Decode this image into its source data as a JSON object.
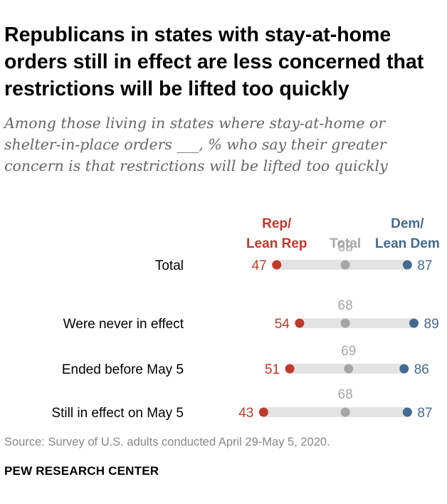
{
  "title": "Republicans in states with stay-at-home orders still in effect are less concerned that restrictions will be lifted too quickly",
  "subtitle": "Among those living in states where stay-at-home or shelter-in-place orders ___, % who say their greater concern is that restrictions will be lifted too quickly",
  "source": "Source: Survey of U.S. adults conducted April 29-May 5, 2020.",
  "org": "PEW RESEARCH CENTER",
  "colors": {
    "rep": "#c0392b",
    "total": "#a6a6a6",
    "dem": "#436a90",
    "bar": "#e3e3e3",
    "label": "#000000"
  },
  "chart_data": {
    "type": "dot",
    "legend": [
      {
        "key": "rep",
        "lines": [
          "Rep/",
          "Lean Rep"
        ]
      },
      {
        "key": "total",
        "lines": [
          "Total"
        ]
      },
      {
        "key": "dem",
        "lines": [
          "Dem/",
          "Lean Dem"
        ]
      }
    ],
    "categories": [
      "Total",
      "Were never in effect",
      "Ended before May 5",
      "Still in effect on May 5"
    ],
    "series": [
      {
        "key": "rep",
        "name": "Rep/Lean Rep",
        "values": [
          47,
          54,
          51,
          43
        ]
      },
      {
        "key": "total",
        "name": "Total",
        "values": [
          68,
          68,
          69,
          68
        ]
      },
      {
        "key": "dem",
        "name": "Dem/Lean Dem",
        "values": [
          87,
          89,
          86,
          87
        ]
      }
    ]
  }
}
